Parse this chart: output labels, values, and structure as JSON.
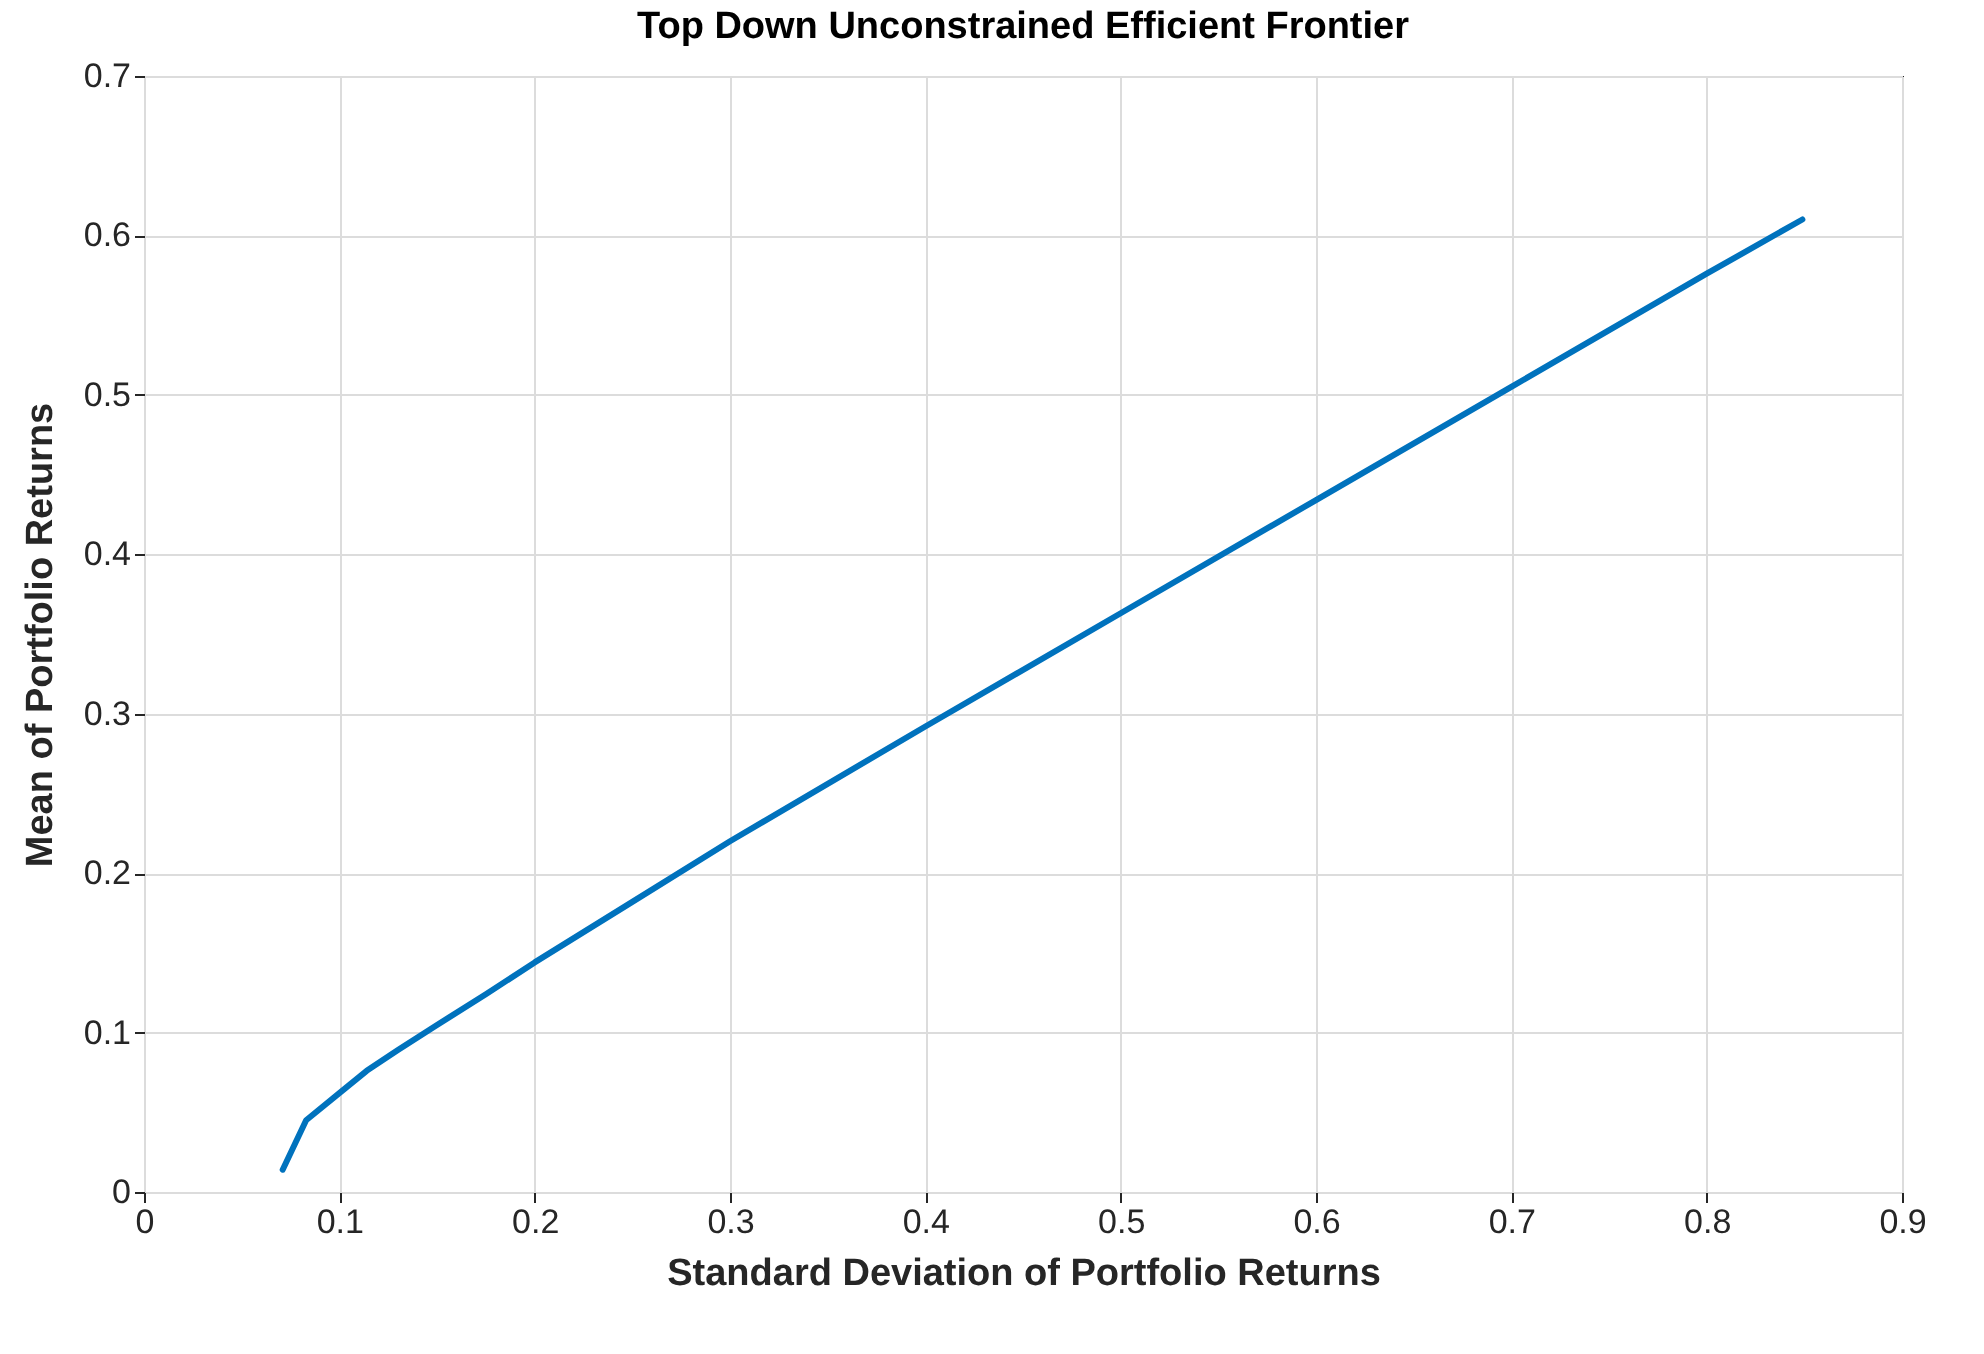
{
  "chart_data": {
    "type": "line",
    "title": "Top Down Unconstrained Efficient Frontier",
    "xlabel": "Standard Deviation of Portfolio Returns",
    "ylabel": "Mean of Portfolio Returns",
    "series": [
      {
        "color": "#0072bd",
        "x": [
          0.071,
          0.083,
          0.1,
          0.114,
          0.13,
          0.149,
          0.175,
          0.2,
          0.25,
          0.3,
          0.4,
          0.5,
          0.6,
          0.7,
          0.8,
          0.849
        ],
        "values": [
          0.014,
          0.045,
          0.062,
          0.076,
          0.089,
          0.104,
          0.124,
          0.144,
          0.182,
          0.22,
          0.292,
          0.363,
          0.434,
          0.505,
          0.576,
          0.61
        ]
      }
    ],
    "xlim": [
      0,
      0.9
    ],
    "xticks": [
      0,
      0.1,
      0.2,
      0.3,
      0.4,
      0.5,
      0.6,
      0.7,
      0.8,
      0.9
    ],
    "ylim": [
      0,
      0.7
    ],
    "yticks": [
      0,
      0.1,
      0.2,
      0.3,
      0.4,
      0.5,
      0.6,
      0.7
    ],
    "grid": true,
    "line_style": "solid",
    "marker": "none"
  }
}
